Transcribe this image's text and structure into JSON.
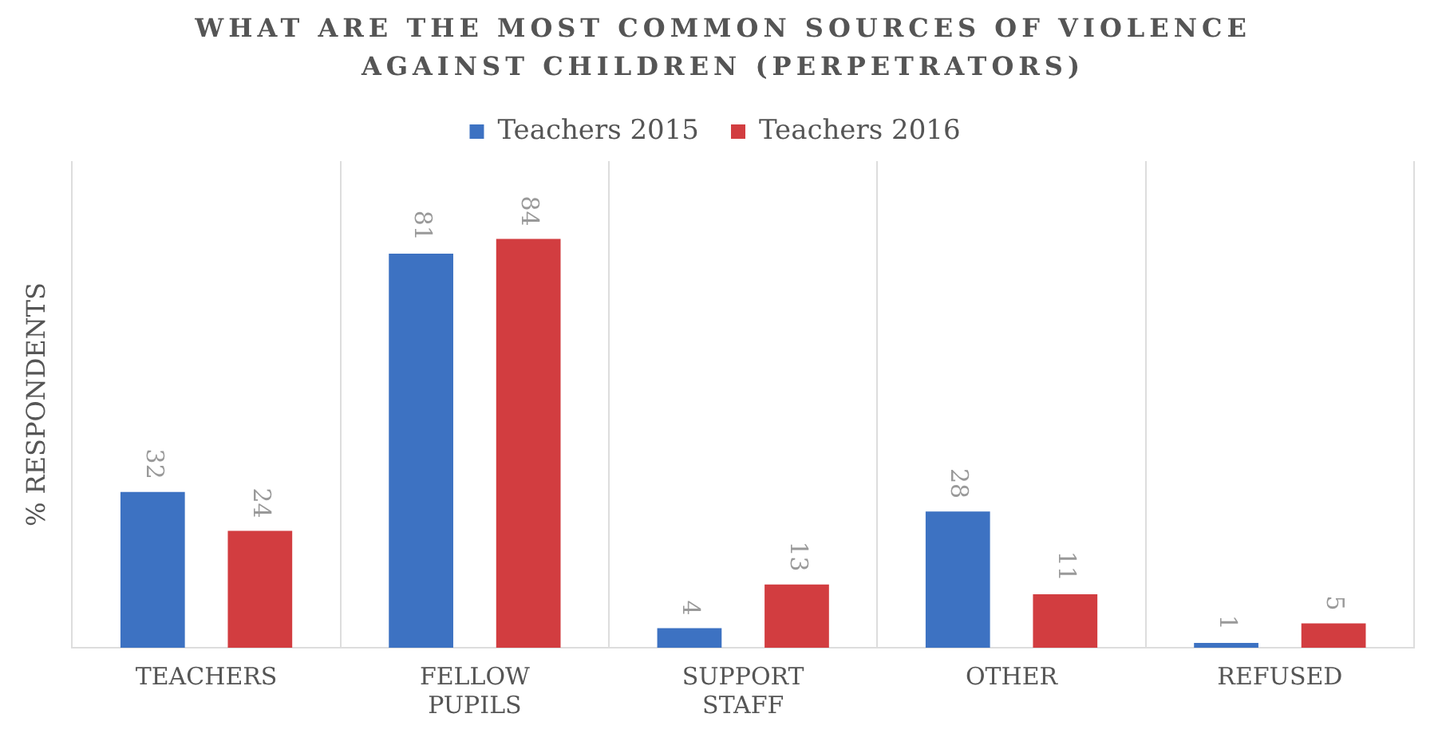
{
  "chart_data": {
    "type": "bar",
    "title": "WHAT ARE THE MOST COMMON SOURCES OF VIOLENCE AGAINST CHILDREN (PERPETRATORS)",
    "ylabel": "% RESPONDENTS",
    "categories": [
      "TEACHERS",
      "FELLOW PUPILS",
      "SUPPORT STAFF",
      "OTHER",
      "REFUSED"
    ],
    "series": [
      {
        "name": "Teachers 2015",
        "color": "#3d72c2",
        "values": [
          32,
          81,
          4,
          28,
          1
        ]
      },
      {
        "name": "Teachers 2016",
        "color": "#d23d40",
        "values": [
          24,
          84,
          13,
          11,
          5
        ]
      }
    ],
    "ylim": [
      0,
      100
    ],
    "tick_labels": "x",
    "grid": "x",
    "legend": "top",
    "data_labels": true
  }
}
